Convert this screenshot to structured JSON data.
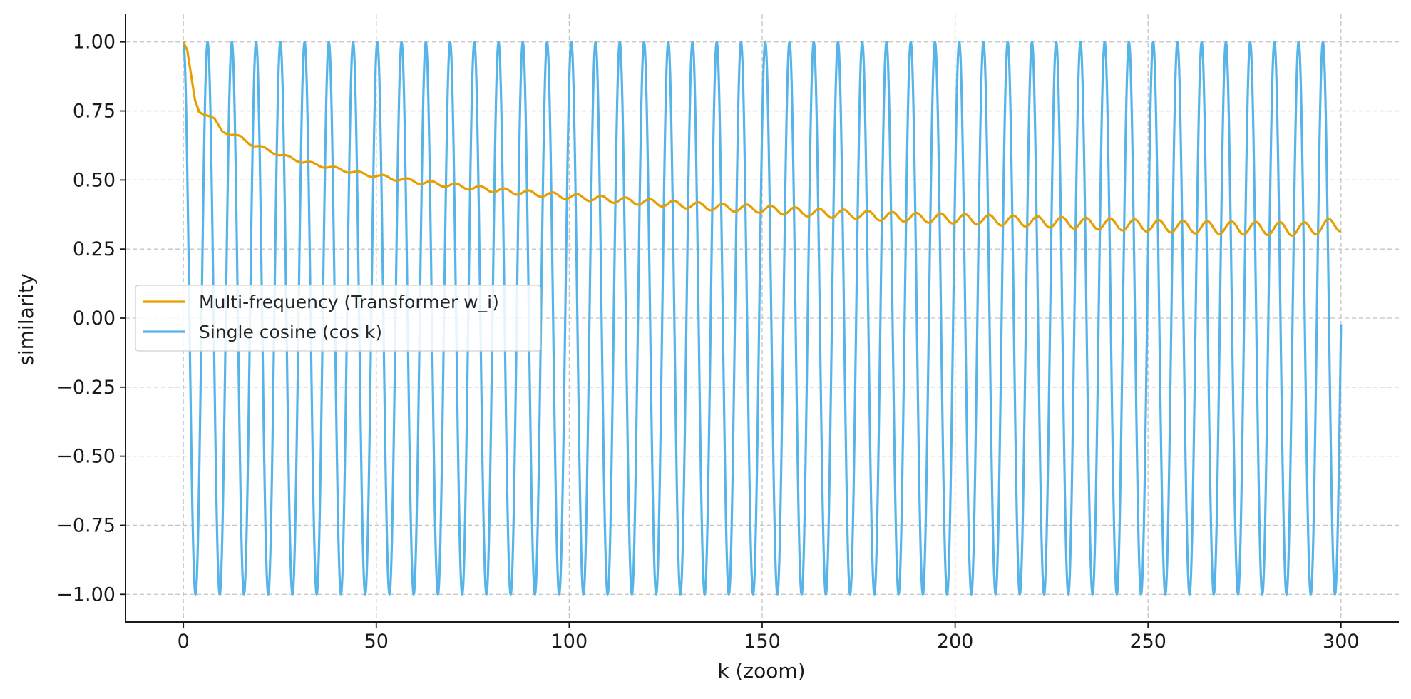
{
  "chart_data": {
    "type": "line",
    "title": "",
    "xlabel": "k (zoom)",
    "ylabel": "similarity",
    "xlim": [
      -15,
      315
    ],
    "ylim": [
      -1.1,
      1.1
    ],
    "x_ticks": [
      0,
      50,
      100,
      150,
      200,
      250,
      300
    ],
    "x_tick_labels": [
      "0",
      "50",
      "100",
      "150",
      "200",
      "250",
      "300"
    ],
    "y_ticks": [
      1.0,
      0.75,
      0.5,
      0.25,
      0.0,
      -0.25,
      -0.5,
      -0.75,
      -1.0
    ],
    "y_tick_labels": [
      "1.00",
      "0.75",
      "0.50",
      "0.25",
      "0.00",
      "−0.25",
      "−0.50",
      "−0.75",
      "−1.00"
    ],
    "grid": true,
    "legend_position": "center-left",
    "x_domain": [
      0,
      300
    ],
    "series": [
      {
        "name": "Multi-frequency (Transformer w_i)",
        "color": "#E69F00",
        "points": [
          [
            0,
            1.0
          ],
          [
            1,
            0.97
          ],
          [
            2,
            0.88
          ],
          [
            3,
            0.79
          ],
          [
            4,
            0.75
          ],
          [
            6,
            0.735
          ],
          [
            8,
            0.72
          ],
          [
            10,
            0.68
          ],
          [
            12,
            0.665
          ],
          [
            15,
            0.655
          ],
          [
            18,
            0.625
          ],
          [
            21,
            0.615
          ],
          [
            25,
            0.59
          ],
          [
            28,
            0.58
          ],
          [
            31,
            0.565
          ],
          [
            35,
            0.555
          ],
          [
            38,
            0.545
          ],
          [
            42,
            0.535
          ],
          [
            45,
            0.525
          ],
          [
            50,
            0.515
          ],
          [
            55,
            0.505
          ],
          [
            60,
            0.495
          ],
          [
            65,
            0.487
          ],
          [
            70,
            0.48
          ],
          [
            75,
            0.472
          ],
          [
            80,
            0.465
          ],
          [
            85,
            0.458
          ],
          [
            90,
            0.452
          ],
          [
            95,
            0.446
          ],
          [
            100,
            0.44
          ],
          [
            105,
            0.435
          ],
          [
            110,
            0.43
          ],
          [
            115,
            0.425
          ],
          [
            120,
            0.42
          ],
          [
            125,
            0.415
          ],
          [
            130,
            0.41
          ],
          [
            135,
            0.405
          ],
          [
            140,
            0.4
          ],
          [
            145,
            0.398
          ],
          [
            150,
            0.395
          ],
          [
            155,
            0.39
          ],
          [
            160,
            0.385
          ],
          [
            165,
            0.38
          ],
          [
            170,
            0.378
          ],
          [
            175,
            0.375
          ],
          [
            180,
            0.37
          ],
          [
            185,
            0.367
          ],
          [
            190,
            0.364
          ],
          [
            195,
            0.362
          ],
          [
            200,
            0.36
          ],
          [
            210,
            0.355
          ],
          [
            220,
            0.35
          ],
          [
            230,
            0.345
          ],
          [
            240,
            0.34
          ],
          [
            250,
            0.335
          ],
          [
            260,
            0.33
          ],
          [
            270,
            0.327
          ],
          [
            280,
            0.325
          ],
          [
            290,
            0.322
          ],
          [
            300,
            0.34
          ]
        ],
        "ripple": {
          "period": 6.28,
          "start_amplitude": 0.003,
          "end_amplitude": 0.025
        }
      },
      {
        "name": "Single cosine (cos k)",
        "color": "#56B4E9",
        "formula": "cos(k)",
        "k_range": [
          0,
          300
        ]
      }
    ]
  }
}
